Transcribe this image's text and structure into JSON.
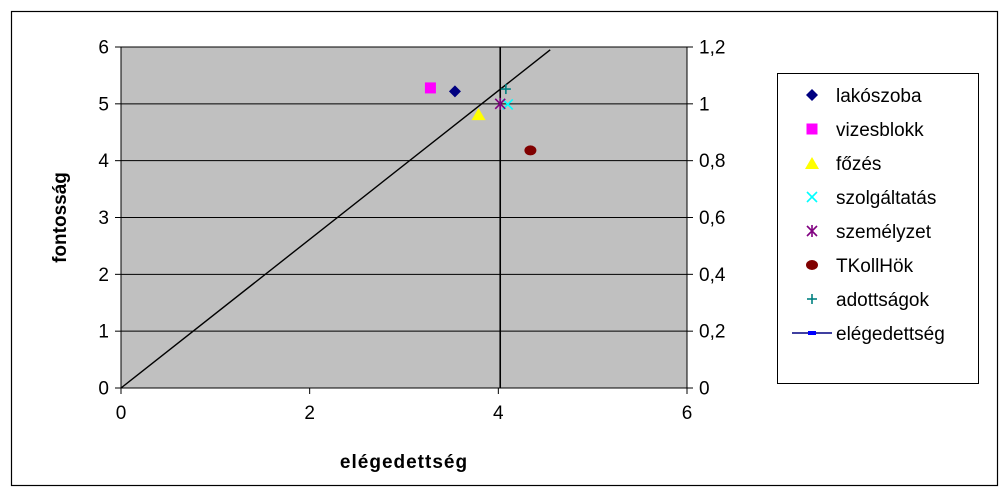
{
  "chart_data": {
    "type": "scatter",
    "title": "",
    "xlabel": "elégedettség",
    "ylabel": "fontosság",
    "xlim": [
      0,
      6
    ],
    "ylim": [
      0,
      6
    ],
    "y2lim": [
      0,
      1.2
    ],
    "x_ticks": [
      "0",
      "2",
      "4",
      "6"
    ],
    "y_ticks": [
      "0",
      "1",
      "2",
      "3",
      "4",
      "5",
      "6"
    ],
    "y2_ticks": [
      "0",
      "0,2",
      "0,4",
      "0,6",
      "0,8",
      "1",
      "1,2"
    ],
    "grid": "horizontal",
    "plot_background": "#c0c0c0",
    "legend_position": "right",
    "series": [
      {
        "name": "lakószoba",
        "marker": "diamond",
        "color": "#000080",
        "x": [
          3.54
        ],
        "y": [
          5.22
        ]
      },
      {
        "name": "vizesblokk",
        "marker": "square",
        "color": "#ff00ff",
        "x": [
          3.28
        ],
        "y": [
          5.28
        ]
      },
      {
        "name": "főzés",
        "marker": "triangle",
        "color": "#ffff00",
        "x": [
          3.79
        ],
        "y": [
          4.82
        ]
      },
      {
        "name": "szolgáltatás",
        "marker": "x",
        "color": "#00ffff",
        "x": [
          4.1
        ],
        "y": [
          4.99
        ]
      },
      {
        "name": "személyzet",
        "marker": "asterisk",
        "color": "#800080",
        "x": [
          4.02
        ],
        "y": [
          5.0
        ]
      },
      {
        "name": "TKollHök",
        "marker": "circle",
        "color": "#800000",
        "x": [
          4.34
        ],
        "y": [
          4.18
        ]
      },
      {
        "name": "adottságok",
        "marker": "plus",
        "color": "#008080",
        "x": [
          4.08
        ],
        "y": [
          5.26
        ]
      },
      {
        "name": "elégedettség",
        "marker": "line",
        "color": "#000080",
        "x": [
          0,
          4.55
        ],
        "y": [
          0,
          5.95
        ]
      }
    ],
    "reference_line": {
      "x": [
        0,
        4.55
      ],
      "y": [
        0,
        5.95
      ],
      "color": "#000000"
    },
    "vertical_line_x": 4.02
  }
}
